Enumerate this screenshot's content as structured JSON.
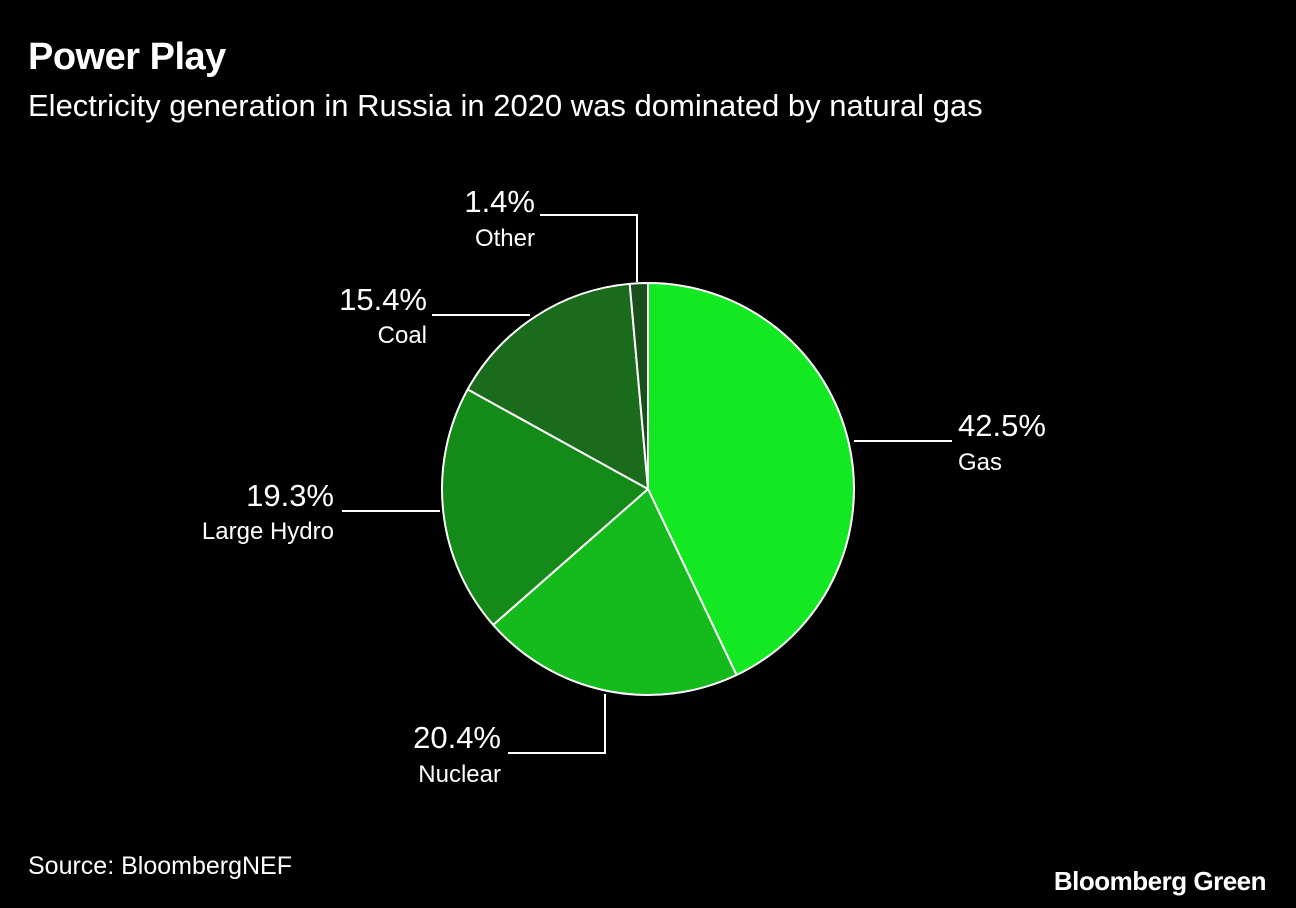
{
  "title": "Power Play",
  "subtitle": "Electricity generation in Russia in 2020 was dominated by natural gas",
  "source": "Source: BloombergNEF",
  "brand": "Bloomberg Green",
  "chart_data": {
    "type": "pie",
    "title": "Power Play",
    "subtitle": "Electricity generation in Russia in 2020 was dominated by natural gas",
    "slices": [
      {
        "label": "Gas",
        "value": 42.5,
        "display": "42.5%",
        "color": "#13e823"
      },
      {
        "label": "Nuclear",
        "value": 20.4,
        "display": "20.4%",
        "color": "#15ba1c"
      },
      {
        "label": "Large Hydro",
        "value": 19.3,
        "display": "19.3%",
        "color": "#148a18"
      },
      {
        "label": "Coal",
        "value": 15.4,
        "display": "15.4%",
        "color": "#1a6b1c"
      },
      {
        "label": "Other",
        "value": 1.4,
        "display": "1.4%",
        "color": "#1a4f1c"
      }
    ],
    "start": "top",
    "direction": "clockwise",
    "legend": "none",
    "data_labels": "outside with leader lines"
  }
}
